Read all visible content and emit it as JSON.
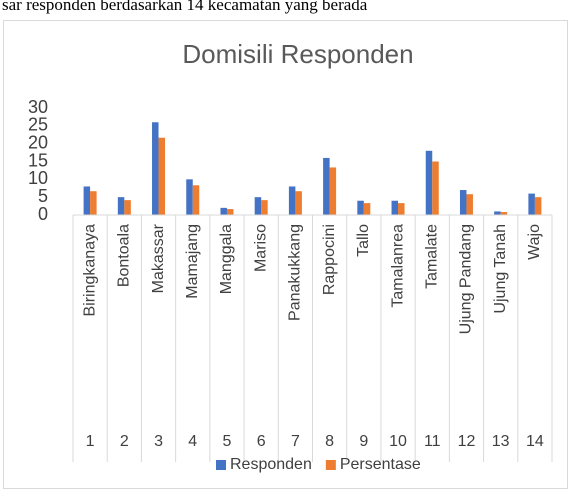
{
  "caption": "sar responden berdasarkan 14 kecamatan yang berada",
  "chart_data": {
    "type": "bar",
    "title": "Domisili Responden",
    "categories": [
      "Biringkanaya",
      "Bontoala",
      "Makassar",
      "Mamajang",
      "Manggala",
      "Mariso",
      "Panakukkang",
      "Rappocini",
      "Tallo",
      "Tamalanrea",
      "Tamalate",
      "Ujung Pandang",
      "Ujung Tanah",
      "Wajo"
    ],
    "category_numbers": [
      1,
      2,
      3,
      4,
      5,
      6,
      7,
      8,
      9,
      10,
      11,
      12,
      13,
      14
    ],
    "series": [
      {
        "name": "Responden",
        "color": "#4472c4",
        "values": [
          8,
          5,
          26,
          10,
          2,
          5,
          8,
          16,
          4,
          4,
          18,
          7,
          1,
          6
        ]
      },
      {
        "name": "Persentase",
        "color": "#ed7d31",
        "values": [
          6.67,
          4.17,
          21.67,
          8.33,
          1.67,
          4.17,
          6.67,
          13.33,
          3.33,
          3.33,
          15,
          5.83,
          0.83,
          5
        ]
      }
    ],
    "ylim": [
      0,
      30
    ],
    "yticks": [
      0,
      5,
      10,
      15,
      20,
      25,
      30
    ],
    "grid": false,
    "legend": "bottom"
  }
}
